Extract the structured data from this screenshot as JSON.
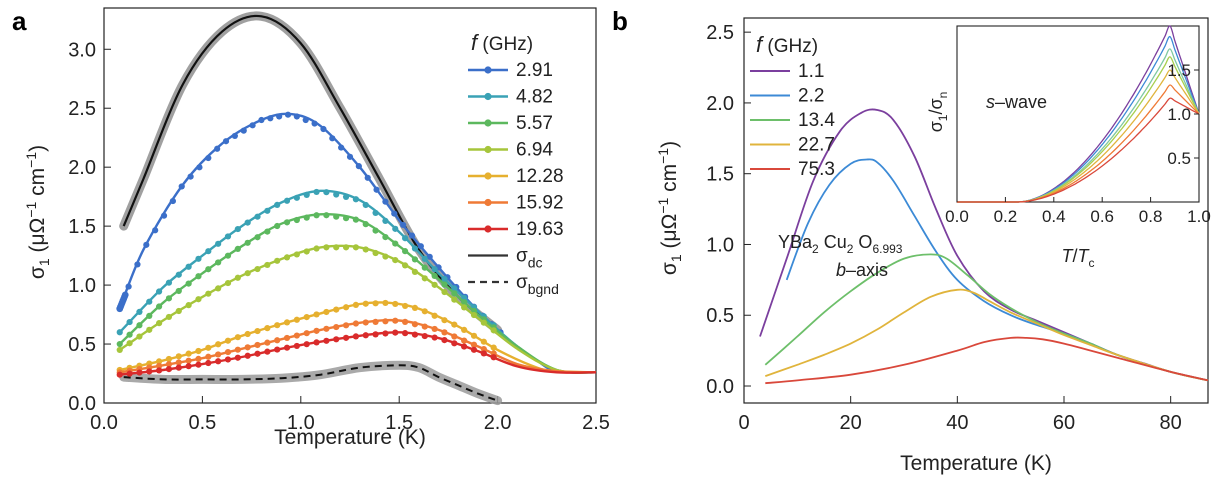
{
  "chart_data": [
    {
      "panel": "a",
      "type": "line",
      "xlabel": "Temperature (K)",
      "ylabel": "σ₁ (μΩ⁻¹ cm⁻¹)",
      "xlim": [
        0,
        2.5
      ],
      "ylim": [
        0,
        3.35
      ],
      "xticks": [
        "0.0",
        "0.5",
        "1.0",
        "1.5",
        "2.0",
        "2.5"
      ],
      "yticks": [
        "0.0",
        "0.5",
        "1.0",
        "1.5",
        "2.0",
        "2.5",
        "3.0"
      ],
      "legend_title": "f (GHz)",
      "legend_placement": "top-right",
      "series": [
        {
          "name": "2.91",
          "color": "#3b6fc9",
          "x": [
            0.08,
            0.2,
            0.4,
            0.6,
            0.8,
            0.95,
            1.1,
            1.3,
            1.5,
            1.7,
            1.9,
            2.0,
            2.1,
            2.2,
            2.3,
            2.5
          ],
          "y": [
            0.8,
            1.3,
            1.85,
            2.2,
            2.4,
            2.45,
            2.35,
            2.0,
            1.55,
            1.15,
            0.78,
            0.62,
            0.48,
            0.36,
            0.27,
            0.26
          ]
        },
        {
          "name": "4.82",
          "color": "#3aa2b5",
          "x": [
            0.08,
            0.3,
            0.5,
            0.7,
            0.9,
            1.1,
            1.3,
            1.5,
            1.7,
            1.9,
            2.1,
            2.3,
            2.5
          ],
          "y": [
            0.6,
            0.98,
            1.25,
            1.5,
            1.7,
            1.8,
            1.72,
            1.45,
            1.1,
            0.78,
            0.48,
            0.28,
            0.26
          ]
        },
        {
          "name": "5.57",
          "color": "#5cb85e",
          "x": [
            0.08,
            0.3,
            0.5,
            0.7,
            0.9,
            1.1,
            1.3,
            1.5,
            1.7,
            1.9,
            2.1,
            2.3,
            2.5
          ],
          "y": [
            0.5,
            0.85,
            1.1,
            1.33,
            1.52,
            1.6,
            1.55,
            1.33,
            1.05,
            0.75,
            0.48,
            0.28,
            0.26
          ]
        },
        {
          "name": "6.94",
          "color": "#a6c53b",
          "x": [
            0.08,
            0.3,
            0.5,
            0.7,
            0.9,
            1.1,
            1.3,
            1.5,
            1.7,
            1.9,
            2.1,
            2.3,
            2.5
          ],
          "y": [
            0.45,
            0.7,
            0.9,
            1.08,
            1.22,
            1.32,
            1.32,
            1.2,
            0.98,
            0.72,
            0.46,
            0.28,
            0.26
          ]
        },
        {
          "name": "12.28",
          "color": "#e6b02f",
          "x": [
            0.08,
            0.3,
            0.5,
            0.7,
            0.9,
            1.1,
            1.3,
            1.45,
            1.6,
            1.8,
            2.0,
            2.2,
            2.3,
            2.5
          ],
          "y": [
            0.28,
            0.36,
            0.45,
            0.57,
            0.67,
            0.76,
            0.84,
            0.85,
            0.8,
            0.65,
            0.45,
            0.3,
            0.27,
            0.26
          ]
        },
        {
          "name": "15.92",
          "color": "#ef7a36",
          "x": [
            0.08,
            0.3,
            0.5,
            0.7,
            0.9,
            1.1,
            1.3,
            1.5,
            1.7,
            1.9,
            2.1,
            2.3,
            2.5
          ],
          "y": [
            0.26,
            0.32,
            0.38,
            0.46,
            0.54,
            0.62,
            0.68,
            0.7,
            0.62,
            0.48,
            0.33,
            0.27,
            0.26
          ]
        },
        {
          "name": "19.63",
          "color": "#d92b2b",
          "x": [
            0.08,
            0.3,
            0.5,
            0.7,
            0.9,
            1.1,
            1.3,
            1.5,
            1.7,
            1.9,
            2.1,
            2.3,
            2.5
          ],
          "y": [
            0.24,
            0.28,
            0.33,
            0.39,
            0.46,
            0.52,
            0.57,
            0.6,
            0.55,
            0.44,
            0.31,
            0.26,
            0.26
          ]
        }
      ],
      "sigma_dc": {
        "name": "σdc",
        "x": [
          0.1,
          0.2,
          0.4,
          0.6,
          0.8,
          1.0,
          1.2,
          1.4,
          1.6,
          1.8,
          2.0
        ],
        "y": [
          1.5,
          1.9,
          2.7,
          3.15,
          3.28,
          3.05,
          2.5,
          1.9,
          1.3,
          0.9,
          0.62
        ]
      },
      "sigma_bgnd": {
        "name": "σbgnd",
        "x": [
          0.1,
          0.3,
          0.5,
          0.7,
          0.9,
          1.1,
          1.3,
          1.5,
          1.6,
          1.7,
          1.8,
          1.9,
          2.0
        ],
        "y": [
          0.22,
          0.2,
          0.2,
          0.2,
          0.21,
          0.24,
          0.3,
          0.32,
          0.3,
          0.22,
          0.15,
          0.08,
          0.02
        ]
      }
    },
    {
      "panel": "b",
      "type": "line",
      "xlabel": "Temperature (K)",
      "ylabel": "σ₁ (μΩ⁻¹ cm⁻¹)",
      "xlim": [
        0,
        87
      ],
      "ylim": [
        -0.12,
        2.6
      ],
      "xticks": [
        "0",
        "20",
        "40",
        "60",
        "80"
      ],
      "yticks": [
        "0.0",
        "0.5",
        "1.0",
        "1.5",
        "2.0",
        "2.5"
      ],
      "legend_title": "f (GHz)",
      "legend_placement": "top-left",
      "annotation_compound": "YBa₂ Cu₂ O₆.₉₉₃",
      "annotation_axis": "b–axis",
      "series": [
        {
          "name": "1.1",
          "color": "#7b3f9e",
          "x": [
            3,
            8,
            13,
            18,
            22,
            25,
            28,
            32,
            36,
            40,
            45,
            50,
            55,
            60,
            65,
            70,
            75,
            80,
            87
          ],
          "y": [
            0.35,
            0.9,
            1.45,
            1.8,
            1.93,
            1.95,
            1.88,
            1.62,
            1.25,
            0.92,
            0.67,
            0.54,
            0.46,
            0.38,
            0.3,
            0.22,
            0.16,
            0.1,
            0.04
          ]
        },
        {
          "name": "2.2",
          "color": "#3c8ad6",
          "x": [
            8,
            12,
            16,
            20,
            23,
            25,
            28,
            32,
            36,
            40,
            45,
            50,
            55,
            60,
            65,
            70,
            80,
            87
          ],
          "y": [
            0.75,
            1.15,
            1.42,
            1.57,
            1.6,
            1.58,
            1.45,
            1.2,
            0.95,
            0.75,
            0.6,
            0.5,
            0.43,
            0.37,
            0.3,
            0.22,
            0.1,
            0.04
          ]
        },
        {
          "name": "13.4",
          "color": "#6dbf6a",
          "x": [
            4,
            10,
            15,
            20,
            25,
            30,
            35,
            38,
            42,
            46,
            50,
            55,
            60,
            65,
            70,
            80,
            87
          ],
          "y": [
            0.15,
            0.35,
            0.52,
            0.67,
            0.8,
            0.9,
            0.93,
            0.9,
            0.78,
            0.65,
            0.55,
            0.45,
            0.37,
            0.3,
            0.22,
            0.1,
            0.04
          ]
        },
        {
          "name": "22.7",
          "color": "#e0b43c",
          "x": [
            4,
            10,
            15,
            20,
            25,
            30,
            35,
            40,
            43,
            46,
            50,
            55,
            60,
            65,
            70,
            80,
            87
          ],
          "y": [
            0.07,
            0.15,
            0.22,
            0.3,
            0.4,
            0.52,
            0.63,
            0.68,
            0.66,
            0.6,
            0.52,
            0.44,
            0.36,
            0.29,
            0.22,
            0.1,
            0.04
          ]
        },
        {
          "name": "75.3",
          "color": "#d9483b",
          "x": [
            4,
            10,
            20,
            30,
            40,
            45,
            50,
            53,
            56,
            60,
            65,
            70,
            80,
            87
          ],
          "y": [
            0.02,
            0.04,
            0.08,
            0.15,
            0.25,
            0.31,
            0.34,
            0.34,
            0.33,
            0.3,
            0.25,
            0.2,
            0.1,
            0.04
          ]
        }
      ],
      "inset": {
        "label": "s–wave",
        "xlabel": "T/Tc",
        "ylabel": "σ₁/σₙ",
        "xlim": [
          0,
          1.0
        ],
        "ylim": [
          0,
          2.0
        ],
        "xticks": [
          "0.0",
          "0.2",
          "0.4",
          "0.6",
          "0.8",
          "1.0"
        ],
        "yticks": [
          "0.5",
          "1.0",
          "1.5"
        ],
        "series": [
          {
            "color": "#7b3f9e",
            "peak": 2.0
          },
          {
            "color": "#3c8ad6",
            "peak": 1.88
          },
          {
            "color": "#7fc9a0",
            "peak": 1.74
          },
          {
            "color": "#a8cf4e",
            "peak": 1.65
          },
          {
            "color": "#e0b43c",
            "peak": 1.5
          },
          {
            "color": "#ef7a36",
            "peak": 1.33
          },
          {
            "color": "#d9483b",
            "peak": 1.18
          }
        ]
      }
    }
  ]
}
